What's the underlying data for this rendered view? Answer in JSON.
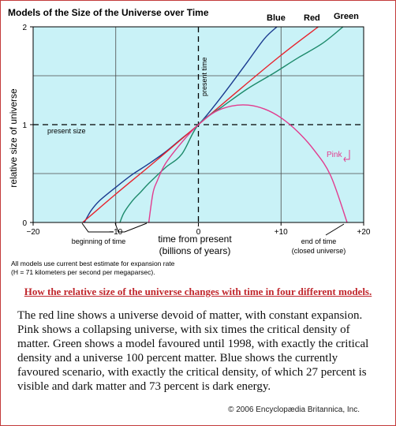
{
  "chart_data": {
    "type": "line",
    "title": "Models of the Size of the Universe over Time",
    "xlabel": "time from present\n(billions of years)",
    "ylabel": "relative size of universe",
    "xlim": [
      -20,
      20
    ],
    "ylim": [
      0,
      2
    ],
    "x_ticks": [
      "−20",
      "−10",
      "0",
      "+10",
      "+20"
    ],
    "y_ticks": [
      "0",
      "1",
      "2"
    ],
    "grid": true,
    "legend": "curve labels at upper right",
    "background": "#c9f2f7",
    "series": [
      {
        "name": "Blue",
        "color": "#1a3a8f",
        "x": [
          -13.8,
          -13,
          -12,
          -10,
          -8,
          -6,
          -4,
          -2,
          0,
          2,
          4,
          6,
          8,
          9.5
        ],
        "y": [
          0,
          0.12,
          0.22,
          0.36,
          0.49,
          0.6,
          0.72,
          0.86,
          1.0,
          1.2,
          1.42,
          1.65,
          1.88,
          2.0
        ]
      },
      {
        "name": "Red",
        "color": "#e8222b",
        "x": [
          -14,
          -10,
          -5,
          0,
          5,
          10,
          14.5
        ],
        "y": [
          0,
          0.29,
          0.64,
          1.0,
          1.36,
          1.71,
          2.0
        ]
      },
      {
        "name": "Green",
        "color": "#1d8a6b",
        "x": [
          -9.5,
          -9,
          -8,
          -7,
          -6,
          -4,
          -2,
          0,
          3,
          6,
          9,
          12,
          15,
          17.5
        ],
        "y": [
          0,
          0.1,
          0.22,
          0.31,
          0.4,
          0.56,
          0.7,
          1.0,
          1.19,
          1.37,
          1.52,
          1.68,
          1.83,
          2.0
        ]
      },
      {
        "name": "Pink",
        "color": "#e23b8e",
        "x": [
          -6,
          -5.5,
          -5,
          -4,
          -2,
          0,
          2,
          4,
          6,
          8,
          10,
          12,
          14,
          16,
          18
        ],
        "y": [
          0,
          0.3,
          0.42,
          0.6,
          0.82,
          1.0,
          1.13,
          1.19,
          1.2,
          1.16,
          1.07,
          0.93,
          0.74,
          0.48,
          0
        ]
      }
    ],
    "reference_lines": {
      "present_size_label": "present size",
      "present_time_label": "present time"
    },
    "annotations": {
      "beginning": "beginning of time",
      "end": "end of time\n(closed universe)"
    },
    "note": "All models use current best estimate for expansion rate\n(H = 71 kilometers per second per megaparsec)."
  },
  "caption": {
    "title": "How the relative size of the universe changes with time in four different models.",
    "body": "The red line shows a universe devoid of matter, with constant expansion. Pink shows a collapsing universe, with six times the critical density of matter. Green shows a model favoured until 1998, with exactly the critical density and a universe 100 percent matter. Blue shows the currently favoured scenario, with exactly the critical density, of which 27 percent is visible and dark matter and 73 percent is dark energy.",
    "copyright": "© 2006 Encyclopædia Britannica, Inc."
  }
}
